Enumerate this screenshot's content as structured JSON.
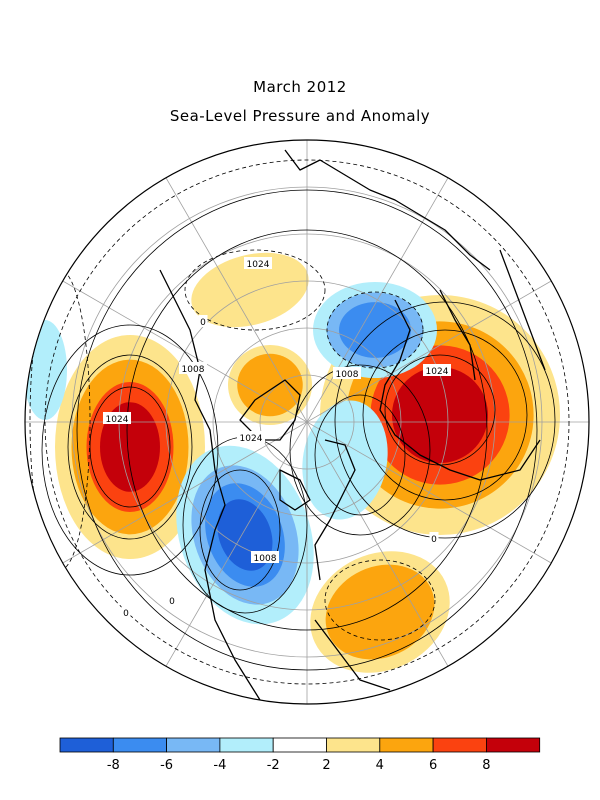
{
  "title": "March 2012",
  "subtitle": "Sea-Level Pressure and Anomaly",
  "colors": {
    "n8": "#1e5fd8",
    "n6": "#3b8cf0",
    "n4": "#78b8f5",
    "n2": "#b2eefb",
    "zero": "#ffffff",
    "p2": "#fde48c",
    "p4": "#fca50e",
    "p6": "#fb4210",
    "p8": "#c4000a",
    "coast": "#000000",
    "grid": "#a0a0a0"
  },
  "colorbar": {
    "colors": [
      "#1e5fd8",
      "#3b8cf0",
      "#78b8f5",
      "#b2eefb",
      "#ffffff",
      "#fde48c",
      "#fca50e",
      "#fb4210",
      "#c4000a"
    ],
    "tick_labels": [
      "-8",
      "-6",
      "-4",
      "-2",
      "2",
      "4",
      "6",
      "8"
    ]
  },
  "contour_labels": [
    {
      "text": "1024"
    },
    {
      "text": "1024"
    },
    {
      "text": "1024"
    },
    {
      "text": "1024"
    },
    {
      "text": "1008"
    },
    {
      "text": "1008"
    },
    {
      "text": "1008"
    },
    {
      "text": "0"
    },
    {
      "text": "0"
    },
    {
      "text": "0"
    },
    {
      "text": "0"
    }
  ]
}
